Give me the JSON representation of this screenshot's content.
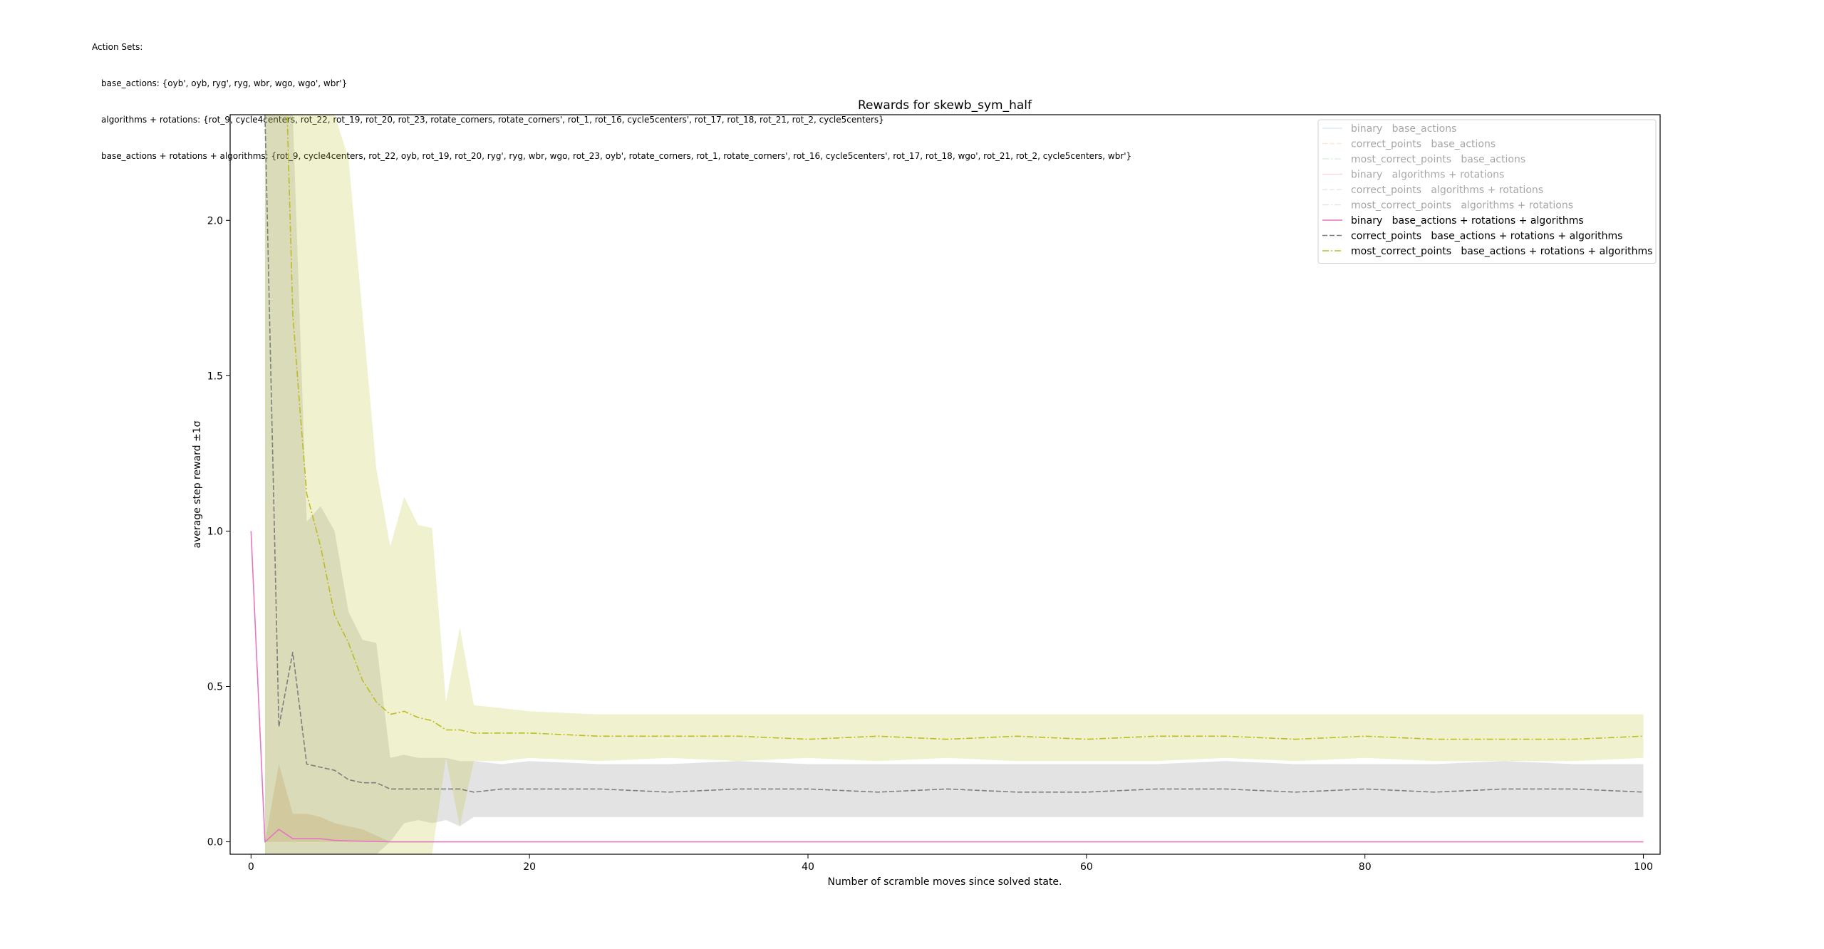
{
  "header": {
    "title": "Action Sets:",
    "lines": [
      "base_actions: {oyb', oyb, ryg', ryg, wbr, wgo, wgo', wbr'}",
      "algorithms + rotations: {rot_9, cycle4centers, rot_22, rot_19, rot_20, rot_23, rotate_corners, rotate_corners', rot_1, rot_16, cycle5centers', rot_17, rot_18, rot_21, rot_2, cycle5centers}",
      "base_actions + rotations + algorithms: {rot_9, cycle4centers, rot_22, oyb, rot_19, rot_20, ryg', ryg, wbr, wgo, rot_23, oyb', rotate_corners, rot_1, rotate_corners', rot_16, cycle5centers', rot_17, rot_18, wgo', rot_21, rot_2, cycle5centers, wbr'}"
    ]
  },
  "chart_data": {
    "type": "line",
    "title": "Rewards for skewb_sym_half",
    "xlabel": "Number of scramble moves since solved state.",
    "ylabel": "average step reward ±1σ",
    "xlim": [
      -1.5,
      101.2
    ],
    "ylim": [
      -0.04,
      2.34
    ],
    "xticks": [
      0,
      20,
      40,
      60,
      80,
      100
    ],
    "yticks": [
      0.0,
      0.5,
      1.0,
      1.5,
      2.0
    ],
    "grid": false,
    "legend_position": "top-right",
    "series": [
      {
        "name": "binary   base_actions",
        "color": "#9ec5e8",
        "dash": "solid",
        "visible": false,
        "legend_alpha": 0.35,
        "x": [],
        "y": []
      },
      {
        "name": "correct_points   base_actions",
        "color": "#f6c08f",
        "dash": "dashed",
        "visible": false,
        "legend_alpha": 0.35,
        "x": [],
        "y": []
      },
      {
        "name": "most_correct_points   base_actions",
        "color": "#9fd59f",
        "dash": "dashdot",
        "visible": false,
        "legend_alpha": 0.35,
        "x": [],
        "y": []
      },
      {
        "name": "binary   algorithms + rotations",
        "color": "#e89999",
        "dash": "solid",
        "visible": false,
        "legend_alpha": 0.35,
        "x": [],
        "y": []
      },
      {
        "name": "correct_points   algorithms + rotations",
        "color": "#c9b6e0",
        "dash": "dashed",
        "visible": false,
        "legend_alpha": 0.35,
        "x": [],
        "y": []
      },
      {
        "name": "most_correct_points   algorithms + rotations",
        "color": "#c8aea8",
        "dash": "dashdot",
        "visible": false,
        "legend_alpha": 0.35,
        "x": [],
        "y": []
      },
      {
        "name": "binary   base_actions + rotations + algorithms",
        "color": "#e377c2",
        "dash": "solid",
        "visible": true,
        "legend_alpha": 1,
        "x": [
          0,
          1,
          2,
          3,
          4,
          5,
          6,
          7,
          8,
          9,
          10,
          12,
          15,
          20,
          30,
          40,
          50,
          60,
          70,
          80,
          90,
          100
        ],
        "y": [
          1.0,
          0.0,
          0.04,
          0.01,
          0.01,
          0.01,
          0.005,
          0.003,
          0.002,
          0.001,
          0.0,
          0.0,
          0.0,
          0.0,
          0.0,
          0.0,
          0.0,
          0.0,
          0.0,
          0.0,
          0.0,
          0.0
        ],
        "band_upper": [
          1.0,
          0.0,
          0.25,
          0.09,
          0.09,
          0.08,
          0.06,
          0.05,
          0.04,
          0.02,
          0.0,
          0.0,
          0.0,
          0.0,
          0.0,
          0.0,
          0.0,
          0.0,
          0.0,
          0.0,
          0.0,
          0.0
        ],
        "band_lower": [
          1.0,
          0.0,
          0.0,
          0.0,
          0.0,
          0.0,
          0.0,
          0.0,
          0.0,
          0.0,
          0.0,
          0.0,
          0.0,
          0.0,
          0.0,
          0.0,
          0.0,
          0.0,
          0.0,
          0.0,
          0.0,
          0.0
        ],
        "band_color": "#d8a07a",
        "band_opacity": 0.3
      },
      {
        "name": "correct_points   base_actions + rotations + algorithms",
        "color": "#7f7f7f",
        "dash": "dashed",
        "visible": true,
        "legend_alpha": 1,
        "x": [
          1,
          2,
          3,
          4,
          5,
          6,
          7,
          8,
          9,
          10,
          11,
          12,
          13,
          14,
          15,
          16,
          18,
          20,
          25,
          30,
          35,
          40,
          45,
          50,
          55,
          60,
          65,
          70,
          75,
          80,
          85,
          90,
          95,
          100
        ],
        "y": [
          2.34,
          0.37,
          0.61,
          0.25,
          0.24,
          0.23,
          0.2,
          0.19,
          0.19,
          0.17,
          0.17,
          0.17,
          0.17,
          0.17,
          0.17,
          0.16,
          0.17,
          0.17,
          0.17,
          0.16,
          0.17,
          0.17,
          0.16,
          0.17,
          0.16,
          0.16,
          0.17,
          0.17,
          0.16,
          0.17,
          0.16,
          0.17,
          0.17,
          0.16
        ],
        "band_upper": [
          2.34,
          2.34,
          2.34,
          1.03,
          1.08,
          1.0,
          0.74,
          0.65,
          0.64,
          0.27,
          0.28,
          0.27,
          0.27,
          0.27,
          0.26,
          0.26,
          0.25,
          0.26,
          0.25,
          0.25,
          0.26,
          0.25,
          0.25,
          0.25,
          0.25,
          0.25,
          0.25,
          0.26,
          0.25,
          0.25,
          0.25,
          0.26,
          0.25,
          0.25
        ],
        "band_lower": [
          -0.04,
          -0.04,
          -0.04,
          -0.04,
          -0.04,
          -0.04,
          -0.04,
          -0.04,
          -0.04,
          0.0,
          0.06,
          0.07,
          0.06,
          0.07,
          0.05,
          0.08,
          0.08,
          0.08,
          0.08,
          0.08,
          0.08,
          0.08,
          0.08,
          0.08,
          0.08,
          0.08,
          0.08,
          0.08,
          0.08,
          0.08,
          0.08,
          0.08,
          0.08,
          0.08
        ],
        "band_color": "#7f7f7f",
        "band_opacity": 0.22
      },
      {
        "name": "most_correct_points   base_actions + rotations + algorithms",
        "color": "#bcbd22",
        "dash": "dashdot",
        "visible": true,
        "legend_alpha": 1,
        "x": [
          1,
          2,
          2.6,
          3,
          3.5,
          4,
          5,
          6,
          7,
          8,
          9,
          10,
          11,
          12,
          13,
          14,
          15,
          16,
          18,
          20,
          25,
          30,
          35,
          40,
          45,
          50,
          55,
          60,
          65,
          70,
          75,
          80,
          85,
          90,
          95,
          100
        ],
        "y": [
          2.34,
          2.34,
          2.34,
          1.7,
          1.4,
          1.12,
          0.95,
          0.73,
          0.64,
          0.52,
          0.45,
          0.41,
          0.42,
          0.4,
          0.39,
          0.36,
          0.36,
          0.35,
          0.35,
          0.35,
          0.34,
          0.34,
          0.34,
          0.33,
          0.34,
          0.33,
          0.34,
          0.33,
          0.34,
          0.34,
          0.33,
          0.34,
          0.33,
          0.33,
          0.33,
          0.34
        ],
        "band_upper": [
          2.34,
          2.34,
          2.34,
          2.34,
          2.34,
          2.34,
          2.34,
          2.34,
          2.2,
          1.7,
          1.2,
          0.95,
          1.11,
          1.02,
          1.01,
          0.45,
          0.69,
          0.44,
          0.43,
          0.42,
          0.41,
          0.41,
          0.41,
          0.41,
          0.41,
          0.41,
          0.41,
          0.41,
          0.41,
          0.41,
          0.41,
          0.41,
          0.41,
          0.41,
          0.41,
          0.41
        ],
        "band_lower": [
          -0.04,
          -0.04,
          -0.04,
          -0.04,
          -0.04,
          -0.04,
          -0.04,
          -0.04,
          -0.04,
          -0.04,
          -0.04,
          -0.04,
          -0.04,
          -0.04,
          -0.04,
          0.27,
          0.05,
          0.26,
          0.26,
          0.27,
          0.26,
          0.27,
          0.26,
          0.27,
          0.26,
          0.27,
          0.26,
          0.26,
          0.26,
          0.27,
          0.26,
          0.27,
          0.26,
          0.26,
          0.26,
          0.27
        ],
        "band_color": "#bcbd22",
        "band_opacity": 0.22
      }
    ]
  }
}
